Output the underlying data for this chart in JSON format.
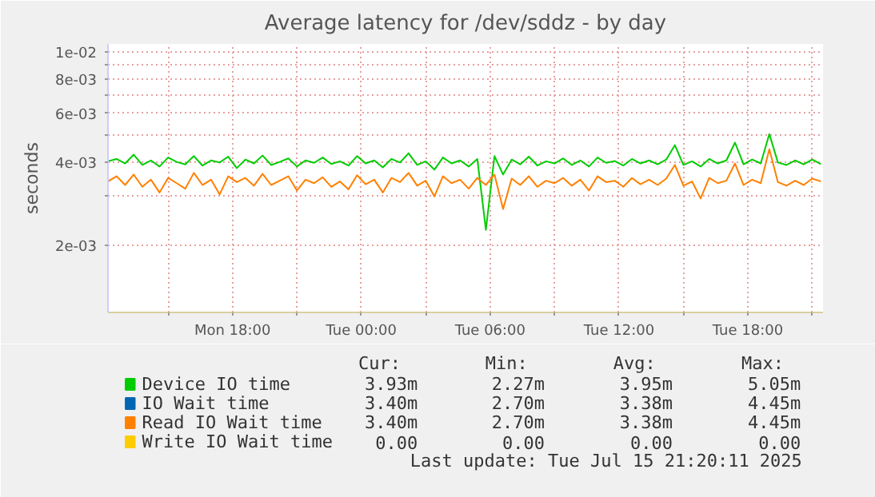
{
  "chart_data": {
    "type": "line",
    "title": "Average latency for /dev/sddz - by day",
    "ylabel": "seconds",
    "log": "y",
    "grid": true,
    "legend": "bottom",
    "x": [
      "2025-07-14T12:12",
      "2025-07-14T12:36",
      "2025-07-14T13:00",
      "2025-07-14T13:24",
      "2025-07-14T13:48",
      "2025-07-14T14:12",
      "2025-07-14T14:36",
      "2025-07-14T15:00",
      "2025-07-14T15:24",
      "2025-07-14T15:48",
      "2025-07-14T16:12",
      "2025-07-14T16:36",
      "2025-07-14T17:00",
      "2025-07-14T17:24",
      "2025-07-14T17:48",
      "2025-07-14T18:12",
      "2025-07-14T18:36",
      "2025-07-14T19:00",
      "2025-07-14T19:24",
      "2025-07-14T19:48",
      "2025-07-14T20:12",
      "2025-07-14T20:36",
      "2025-07-14T21:00",
      "2025-07-14T21:24",
      "2025-07-14T21:48",
      "2025-07-14T22:12",
      "2025-07-14T22:36",
      "2025-07-14T23:00",
      "2025-07-14T23:24",
      "2025-07-14T23:48",
      "2025-07-15T00:12",
      "2025-07-15T00:36",
      "2025-07-15T01:00",
      "2025-07-15T01:24",
      "2025-07-15T01:48",
      "2025-07-15T02:12",
      "2025-07-15T02:36",
      "2025-07-15T03:00",
      "2025-07-15T03:24",
      "2025-07-15T03:48",
      "2025-07-15T04:12",
      "2025-07-15T04:36",
      "2025-07-15T05:00",
      "2025-07-15T05:24",
      "2025-07-15T05:48",
      "2025-07-15T06:12",
      "2025-07-15T06:36",
      "2025-07-15T07:00",
      "2025-07-15T07:24",
      "2025-07-15T07:48",
      "2025-07-15T08:12",
      "2025-07-15T08:36",
      "2025-07-15T09:00",
      "2025-07-15T09:24",
      "2025-07-15T09:48",
      "2025-07-15T10:12",
      "2025-07-15T10:36",
      "2025-07-15T11:00",
      "2025-07-15T11:24",
      "2025-07-15T11:48",
      "2025-07-15T12:12",
      "2025-07-15T12:36",
      "2025-07-15T13:00",
      "2025-07-15T13:24",
      "2025-07-15T13:48",
      "2025-07-15T14:12",
      "2025-07-15T14:36",
      "2025-07-15T15:00",
      "2025-07-15T15:24",
      "2025-07-15T15:48",
      "2025-07-15T16:12",
      "2025-07-15T16:36",
      "2025-07-15T17:00",
      "2025-07-15T17:24",
      "2025-07-15T17:48",
      "2025-07-15T18:12",
      "2025-07-15T18:36",
      "2025-07-15T19:00",
      "2025-07-15T19:24",
      "2025-07-15T19:48",
      "2025-07-15T20:12",
      "2025-07-15T20:36",
      "2025-07-15T21:00",
      "2025-07-15T21:24"
    ],
    "xlim": [
      "2025-07-14T12:12",
      "2025-07-15T21:30"
    ],
    "xticks": [
      {
        "value": "2025-07-14T15:00",
        "label": null
      },
      {
        "value": "2025-07-14T18:00",
        "label": "Mon 18:00"
      },
      {
        "value": "2025-07-14T21:00",
        "label": null
      },
      {
        "value": "2025-07-15T00:00",
        "label": "Tue 00:00"
      },
      {
        "value": "2025-07-15T03:00",
        "label": null
      },
      {
        "value": "2025-07-15T06:00",
        "label": "Tue 06:00"
      },
      {
        "value": "2025-07-15T09:00",
        "label": null
      },
      {
        "value": "2025-07-15T12:00",
        "label": "Tue 12:00"
      },
      {
        "value": "2025-07-15T15:00",
        "label": null
      },
      {
        "value": "2025-07-15T18:00",
        "label": "Tue 18:00"
      },
      {
        "value": "2025-07-15T21:00",
        "label": null
      }
    ],
    "ylim": [
      0.00114,
      0.0107
    ],
    "yticks": [
      {
        "value": 0.002,
        "label": "2e-03"
      },
      {
        "value": 0.003,
        "label": null
      },
      {
        "value": 0.004,
        "label": "4e-03"
      },
      {
        "value": 0.005,
        "label": null
      },
      {
        "value": 0.006,
        "label": "6e-03"
      },
      {
        "value": 0.007,
        "label": null
      },
      {
        "value": 0.008,
        "label": "8e-03"
      },
      {
        "value": 0.009,
        "label": null
      },
      {
        "value": 0.01,
        "label": "1e-02"
      }
    ],
    "series": [
      {
        "name": "Device IO time",
        "color": "#00cc00",
        "values": [
          0.00402,
          0.0041,
          0.00395,
          0.00425,
          0.0039,
          0.00405,
          0.00385,
          0.00415,
          0.004,
          0.00392,
          0.0042,
          0.00388,
          0.00405,
          0.00398,
          0.00418,
          0.0038,
          0.00408,
          0.00395,
          0.00422,
          0.0039,
          0.004,
          0.00412,
          0.00385,
          0.00405,
          0.00397,
          0.00415,
          0.00393,
          0.00402,
          0.00388,
          0.0042,
          0.00395,
          0.00405,
          0.00382,
          0.0041,
          0.00398,
          0.0043,
          0.0039,
          0.00402,
          0.00375,
          0.00415,
          0.00395,
          0.00405,
          0.00385,
          0.0041,
          0.00227,
          0.0042,
          0.0036,
          0.00408,
          0.00392,
          0.00418,
          0.00388,
          0.00402,
          0.00395,
          0.00412,
          0.0039,
          0.00405,
          0.00385,
          0.00415,
          0.00397,
          0.00403,
          0.00388,
          0.0041,
          0.00395,
          0.00405,
          0.00392,
          0.00408,
          0.0046,
          0.0039,
          0.00402,
          0.00385,
          0.0041,
          0.00395,
          0.00405,
          0.0047,
          0.00392,
          0.00408,
          0.00395,
          0.00505,
          0.00398,
          0.0039,
          0.00405,
          0.00392,
          0.00408,
          0.00393
        ]
      },
      {
        "name": "IO Wait time",
        "color": "#0066b3",
        "values": [
          null,
          null,
          null,
          null,
          null,
          null,
          null,
          null,
          null,
          null,
          null,
          null,
          null,
          null,
          null,
          null,
          null,
          null,
          null,
          null,
          null,
          null,
          null,
          null,
          null,
          null,
          null,
          null,
          null,
          null,
          null,
          null,
          null,
          null,
          null,
          null,
          null,
          null,
          null,
          null,
          null,
          null,
          null,
          null,
          null,
          null,
          null,
          null,
          null,
          null,
          null,
          null,
          null,
          null,
          null,
          null,
          null,
          null,
          null,
          null,
          null,
          null,
          null,
          null,
          null,
          null,
          null,
          null,
          null,
          null,
          null,
          null,
          null,
          null,
          null,
          null,
          null,
          null,
          null,
          null,
          null,
          null,
          null,
          null
        ]
      },
      {
        "name": "Read IO Wait time",
        "color": "#ff8000",
        "values": [
          0.0034,
          0.00355,
          0.0033,
          0.0036,
          0.00325,
          0.00345,
          0.0031,
          0.0035,
          0.00335,
          0.0032,
          0.00365,
          0.0033,
          0.00345,
          0.00305,
          0.00355,
          0.00338,
          0.0035,
          0.00328,
          0.00362,
          0.0033,
          0.00342,
          0.00355,
          0.00315,
          0.00345,
          0.00335,
          0.00352,
          0.00325,
          0.0034,
          0.00318,
          0.00358,
          0.00332,
          0.00345,
          0.0031,
          0.0035,
          0.00338,
          0.00365,
          0.00328,
          0.00342,
          0.003,
          0.00355,
          0.00335,
          0.00345,
          0.0032,
          0.0035,
          0.0033,
          0.0036,
          0.0027,
          0.00348,
          0.0033,
          0.00355,
          0.00325,
          0.00342,
          0.00335,
          0.0035,
          0.00328,
          0.00345,
          0.00315,
          0.00355,
          0.00338,
          0.00342,
          0.00325,
          0.0035,
          0.00332,
          0.00345,
          0.0033,
          0.00348,
          0.0039,
          0.00328,
          0.0034,
          0.00295,
          0.0035,
          0.00335,
          0.00342,
          0.00395,
          0.0033,
          0.00345,
          0.00335,
          0.00445,
          0.00338,
          0.00328,
          0.00342,
          0.0033,
          0.00348,
          0.0034
        ]
      },
      {
        "name": "Write IO Wait time",
        "color": "#ffcc00",
        "values": [
          null,
          null,
          null,
          null,
          null,
          null,
          null,
          null,
          null,
          null,
          null,
          null,
          null,
          null,
          null,
          null,
          null,
          null,
          null,
          null,
          null,
          null,
          null,
          null,
          null,
          null,
          null,
          null,
          null,
          null,
          null,
          null,
          null,
          null,
          null,
          null,
          null,
          null,
          null,
          null,
          null,
          null,
          null,
          null,
          null,
          null,
          null,
          null,
          null,
          null,
          null,
          null,
          null,
          null,
          null,
          null,
          null,
          null,
          null,
          null,
          null,
          null,
          null,
          null,
          null,
          null,
          null,
          null,
          null,
          null,
          null,
          null,
          null,
          null,
          null,
          null,
          null,
          null,
          null,
          null,
          null,
          null,
          null,
          null
        ]
      }
    ],
    "annotations": [
      "Cur:",
      "Min:",
      "Avg:",
      "Max:",
      "3.93m",
      "2.27m",
      "3.95m",
      "5.05m",
      "3.40m",
      "2.70m",
      "3.38m",
      "4.45m",
      "3.40m",
      "2.70m",
      "3.38m",
      "4.45m",
      "0.00",
      "0.00",
      "0.00",
      "0.00",
      "Last update: Tue Jul 15 21:20:11 2025"
    ]
  }
}
